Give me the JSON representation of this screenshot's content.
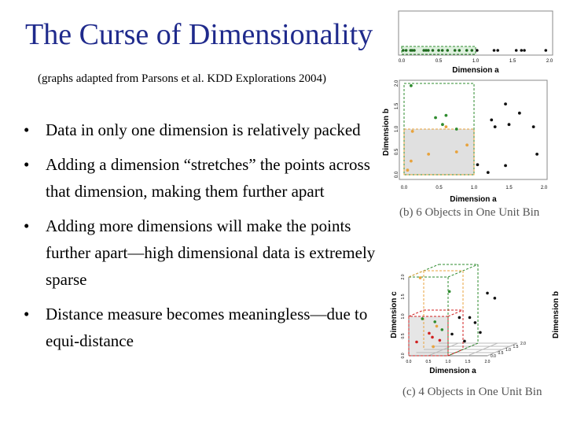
{
  "slide": {
    "title": "The Curse of Dimensionality",
    "subtitle": "(graphs adapted from Parsons et al. KDD Explorations 2004)",
    "bullets": [
      "Data in only one dimension is relatively packed",
      "Adding a dimension “stretches” the points across that dimension, making them further apart",
      "Adding more dimensions will make the points further apart—high dimensional data is extremely sparse",
      "Distance measure becomes meaningless—due to equi-distance"
    ]
  },
  "chart_data": [
    {
      "type": "scatter",
      "title": "",
      "xlabel": "Dimension a",
      "ylabel": "",
      "xlim": [
        0,
        2
      ],
      "xticks": [
        "0.0",
        "0.5",
        "1.0",
        "1.5",
        "2.0"
      ],
      "bin": {
        "x": [
          0,
          1
        ],
        "color": "#2e8b2e"
      },
      "points_x": [
        0.02,
        0.06,
        0.12,
        0.14,
        0.17,
        0.3,
        0.33,
        0.36,
        0.42,
        0.5,
        0.55,
        0.62,
        0.72,
        0.78,
        0.88,
        0.95,
        1.02,
        1.25,
        1.3,
        1.55,
        1.62,
        1.66,
        1.95
      ]
    },
    {
      "type": "scatter",
      "caption": "(b) 6 Objects in One Unit Bin",
      "xlabel": "Dimension a",
      "ylabel": "Dimension b",
      "xlim": [
        0,
        2
      ],
      "ylim": [
        0,
        2
      ],
      "xticks": [
        "0.0",
        "0.5",
        "1.0",
        "1.5",
        "2.0"
      ],
      "yticks": [
        "0.0",
        "0.5",
        "1.0",
        "1.5",
        "2.0"
      ],
      "series": [
        {
          "color": "#e8a33d",
          "points": [
            [
              0.05,
              0.1
            ],
            [
              0.1,
              0.3
            ],
            [
              0.35,
              0.45
            ],
            [
              0.6,
              1.05
            ],
            [
              0.75,
              0.5
            ],
            [
              0.9,
              0.65
            ],
            [
              0.12,
              0.95
            ]
          ]
        },
        {
          "color": "#2e8b2e",
          "points": [
            [
              0.1,
              1.95
            ],
            [
              0.6,
              1.3
            ],
            [
              0.75,
              1.0
            ],
            [
              0.45,
              1.25
            ],
            [
              0.55,
              1.1
            ]
          ]
        },
        {
          "color": "#111111",
          "points": [
            [
              1.05,
              0.22
            ],
            [
              1.2,
              0.05
            ],
            [
              1.45,
              1.55
            ],
            [
              1.25,
              1.2
            ],
            [
              1.3,
              1.05
            ],
            [
              1.45,
              0.2
            ],
            [
              1.5,
              1.1
            ],
            [
              1.65,
              1.35
            ],
            [
              1.9,
              0.45
            ],
            [
              1.85,
              1.05
            ]
          ]
        }
      ]
    },
    {
      "type": "scatter",
      "caption": "(c) 4 Objects in One Unit Bin",
      "xlabel": "Dimension a",
      "ylabel": "Dimension c",
      "zlabel": "Dimension b",
      "xlim": [
        0,
        2
      ],
      "ylim": [
        0,
        2
      ],
      "xticks": [
        "0.0",
        "0.5",
        "1.0",
        "1.5",
        "2.0"
      ],
      "yticks": [
        "0.0",
        "0.5",
        "1.0",
        "1.5",
        "2.0"
      ],
      "zticks": [
        "0.0",
        "0.5",
        "1.0",
        "1.5",
        "2.0"
      ],
      "series": [
        {
          "color": "#d02020",
          "points": [
            [
              0.2,
              0.35
            ],
            [
              0.35,
              0.5
            ],
            [
              0.45,
              0.25
            ],
            [
              0.55,
              0.45
            ]
          ]
        },
        {
          "color": "#2e8b2e",
          "points": [
            [
              0.25,
              0.9
            ],
            [
              0.4,
              0.75
            ],
            [
              0.6,
              1.45
            ],
            [
              0.7,
              0.6
            ]
          ]
        },
        {
          "color": "#e8a33d",
          "points": [
            [
              0.1,
              1.9
            ],
            [
              0.35,
              0.6
            ],
            [
              0.55,
              0.2
            ]
          ]
        },
        {
          "color": "#111111",
          "points": [
            [
              1.0,
              0.85
            ],
            [
              1.1,
              0.55
            ],
            [
              1.25,
              0.3
            ],
            [
              1.35,
              0.7
            ],
            [
              1.5,
              0.95
            ],
            [
              1.6,
              0.5
            ],
            [
              1.8,
              1.3
            ],
            [
              1.9,
              1.55
            ]
          ]
        }
      ]
    }
  ]
}
